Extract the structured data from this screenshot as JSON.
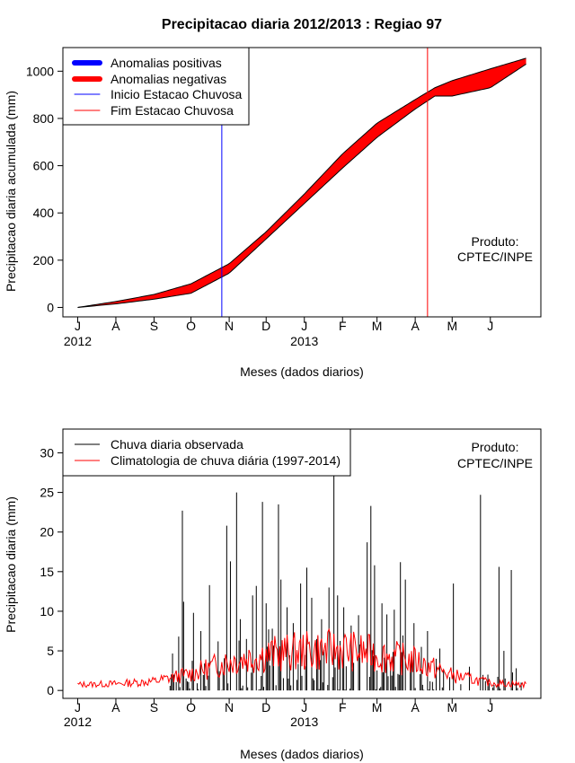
{
  "title": "Precipitacao diaria 2012/2013 : Regiao 97",
  "colors": {
    "positive": "#0000ff",
    "negative": "#ff0000",
    "start_line": "#0000ff",
    "end_line": "#ff0000",
    "observed": "#000000",
    "climatology": "#ff0000"
  },
  "chart_data": [
    {
      "type": "area",
      "name": "accumulated",
      "title": "Precipitacao diaria 2012/2013 : Regiao 97",
      "xlabel": "Meses (dados diarios)",
      "ylabel": "Precipitacao diaria acumulada (mm)",
      "ylim": [
        -40,
        1100
      ],
      "yticks": [
        0,
        200,
        400,
        600,
        800,
        1000
      ],
      "month_ticks": [
        "J",
        "A",
        "S",
        "O",
        "N",
        "D",
        "J",
        "F",
        "M",
        "A",
        "M",
        "J"
      ],
      "month_days": [
        0,
        31,
        62,
        92,
        123,
        153,
        184,
        215,
        243,
        274,
        304,
        335
      ],
      "year_labels": [
        {
          "day": 0,
          "label": "2012"
        },
        {
          "day": 184,
          "label": "2013"
        }
      ],
      "xlim": [
        -12,
        376
      ],
      "legend": [
        "Anomalias positivas",
        "Anomalias negativas",
        "Inicio Estacao Chuvosa",
        "Fim Estacao Chuvosa"
      ],
      "note": [
        "Produto:",
        "CPTEC/INPE"
      ],
      "rainy_season_start_day": 117,
      "rainy_season_end_day": 284,
      "climatology_accumulated": {
        "days": [
          0,
          31,
          62,
          92,
          123,
          153,
          184,
          215,
          243,
          274,
          290,
          304,
          335,
          364
        ],
        "values": [
          0,
          25,
          55,
          100,
          185,
          320,
          480,
          650,
          780,
          880,
          930,
          960,
          1010,
          1055
        ]
      },
      "observed_accumulated": {
        "days": [
          0,
          31,
          62,
          92,
          123,
          153,
          184,
          215,
          243,
          274,
          290,
          304,
          335,
          364
        ],
        "values": [
          0,
          15,
          35,
          60,
          145,
          290,
          440,
          590,
          720,
          840,
          895,
          895,
          930,
          1030
        ]
      }
    },
    {
      "type": "bar",
      "name": "daily",
      "xlabel": "Meses (dados diarios)",
      "ylabel": "Precipitacao diaria (mm)",
      "ylim": [
        -1,
        33
      ],
      "yticks": [
        0,
        5,
        10,
        15,
        20,
        25,
        30
      ],
      "month_ticks": [
        "J",
        "A",
        "S",
        "O",
        "N",
        "D",
        "J",
        "F",
        "M",
        "A",
        "M",
        "J"
      ],
      "month_days": [
        0,
        31,
        62,
        92,
        123,
        153,
        184,
        215,
        243,
        274,
        304,
        335
      ],
      "year_labels": [
        {
          "day": 0,
          "label": "2012"
        },
        {
          "day": 184,
          "label": "2013"
        }
      ],
      "xlim": [
        -12,
        376
      ],
      "legend": [
        "Chuva diaria observada",
        "Climatologia de chuva diária (1997-2014)"
      ],
      "note": [
        "Produto:",
        "CPTEC/INPE"
      ],
      "observed_peaks": [
        {
          "day": 82,
          "value": 6.8
        },
        {
          "day": 85,
          "value": 22.7
        },
        {
          "day": 86,
          "value": 11.2
        },
        {
          "day": 94,
          "value": 9.8
        },
        {
          "day": 100,
          "value": 7.5
        },
        {
          "day": 107,
          "value": 13.3
        },
        {
          "day": 114,
          "value": 6.2
        },
        {
          "day": 121,
          "value": 20.8
        },
        {
          "day": 124,
          "value": 16.3
        },
        {
          "day": 129,
          "value": 25.0
        },
        {
          "day": 132,
          "value": 9.0
        },
        {
          "day": 137,
          "value": 6.5
        },
        {
          "day": 142,
          "value": 12.0
        },
        {
          "day": 145,
          "value": 13.2
        },
        {
          "day": 150,
          "value": 23.8
        },
        {
          "day": 153,
          "value": 11.0
        },
        {
          "day": 158,
          "value": 7.8
        },
        {
          "day": 163,
          "value": 23.5
        },
        {
          "day": 165,
          "value": 14.0
        },
        {
          "day": 170,
          "value": 10.5
        },
        {
          "day": 175,
          "value": 8.5
        },
        {
          "day": 181,
          "value": 13.5
        },
        {
          "day": 186,
          "value": 15.5
        },
        {
          "day": 190,
          "value": 11.7
        },
        {
          "day": 194,
          "value": 6.5
        },
        {
          "day": 198,
          "value": 9.0
        },
        {
          "day": 204,
          "value": 13.0
        },
        {
          "day": 208,
          "value": 28.0
        },
        {
          "day": 211,
          "value": 12.0
        },
        {
          "day": 216,
          "value": 10.5
        },
        {
          "day": 222,
          "value": 8.2
        },
        {
          "day": 228,
          "value": 9.5
        },
        {
          "day": 235,
          "value": 18.7
        },
        {
          "day": 238,
          "value": 23.3
        },
        {
          "day": 241,
          "value": 15.8
        },
        {
          "day": 247,
          "value": 11.0
        },
        {
          "day": 251,
          "value": 9.6
        },
        {
          "day": 257,
          "value": 10.2
        },
        {
          "day": 262,
          "value": 16.2
        },
        {
          "day": 266,
          "value": 14.0
        },
        {
          "day": 273,
          "value": 8.5
        },
        {
          "day": 279,
          "value": 5.5
        },
        {
          "day": 284,
          "value": 7.5
        },
        {
          "day": 291,
          "value": 4.0
        },
        {
          "day": 297,
          "value": 2.5
        },
        {
          "day": 305,
          "value": 13.5
        },
        {
          "day": 318,
          "value": 3.0
        },
        {
          "day": 327,
          "value": 24.7
        },
        {
          "day": 333,
          "value": 2.0
        },
        {
          "day": 342,
          "value": 15.6
        },
        {
          "day": 346,
          "value": 5.0
        },
        {
          "day": 352,
          "value": 15.2
        },
        {
          "day": 356,
          "value": 2.8
        },
        {
          "day": 360,
          "value": 1.0
        }
      ]
    }
  ]
}
